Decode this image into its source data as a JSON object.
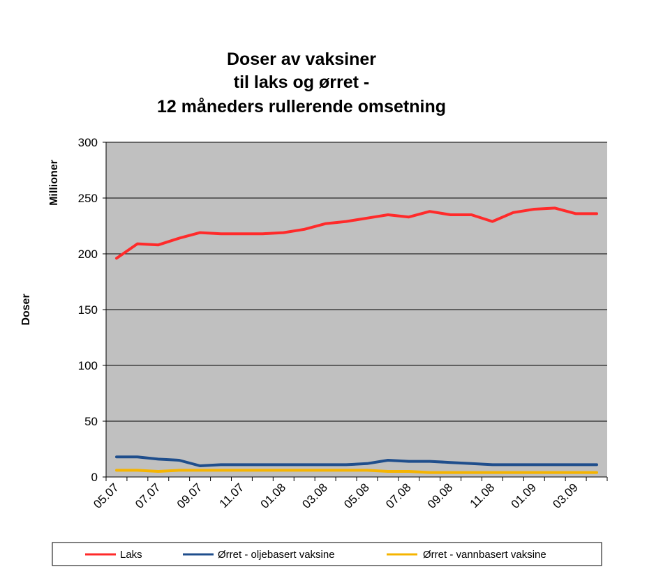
{
  "chart_data": {
    "type": "line",
    "title_lines": [
      "Doser av vaksiner",
      "til laks og ørret -",
      "12 måneders rullerende omsetning"
    ],
    "ylabel": "Doser",
    "yunit": "Millioner",
    "ylim": [
      0,
      300
    ],
    "yticks": [
      "0",
      "50",
      "100",
      "150",
      "200",
      "250",
      "300"
    ],
    "grid": true,
    "legend_position": "bottom",
    "xtick_labels": [
      "05.07",
      "07.07",
      "09.07",
      "11.07",
      "01.08",
      "03.08",
      "05.08",
      "07.08",
      "09.08",
      "11.08",
      "01.09",
      "03.09"
    ],
    "x": [
      "05.07",
      "06.07",
      "07.07",
      "08.07",
      "09.07",
      "10.07",
      "11.07",
      "12.07",
      "01.08",
      "02.08",
      "03.08",
      "04.08",
      "05.08",
      "06.08",
      "07.08",
      "08.08",
      "09.08",
      "10.08",
      "11.08",
      "12.08",
      "01.09",
      "02.09",
      "03.09",
      "04.09"
    ],
    "series": [
      {
        "name": "Laks",
        "color": "#ff2a2a",
        "values": [
          196,
          209,
          208,
          214,
          219,
          218,
          218,
          218,
          219,
          222,
          227,
          229,
          232,
          235,
          233,
          238,
          235,
          235,
          229,
          237,
          240,
          241,
          236,
          236
        ]
      },
      {
        "name": "Ørret - oljebasert vaksine",
        "color": "#1f4e8c",
        "values": [
          18,
          18,
          16,
          15,
          10,
          11,
          11,
          11,
          11,
          11,
          11,
          11,
          12,
          15,
          14,
          14,
          13,
          12,
          11,
          11,
          11,
          11,
          11,
          11
        ]
      },
      {
        "name": "Ørret - vannbasert vaksine",
        "color": "#f5b400",
        "values": [
          6,
          6,
          5,
          6,
          6,
          6,
          6,
          6,
          6,
          6,
          6,
          6,
          6,
          5,
          5,
          4,
          4,
          4,
          4,
          4,
          4,
          4,
          4,
          4
        ]
      }
    ]
  }
}
